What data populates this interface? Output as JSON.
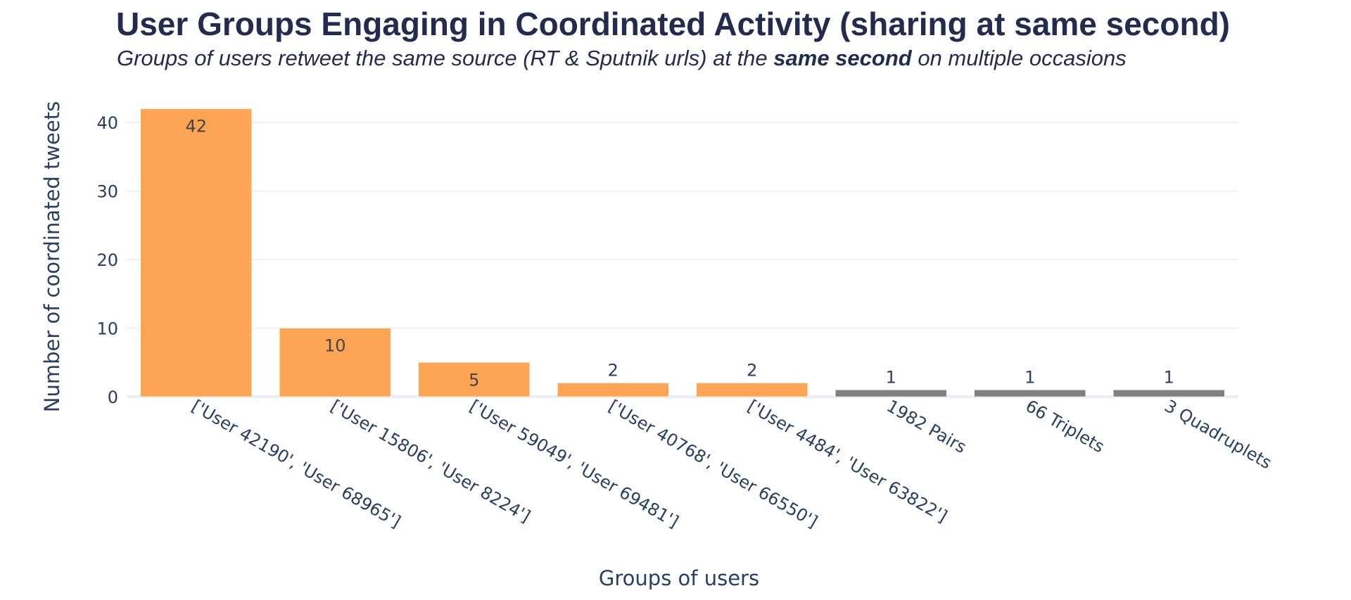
{
  "chart_data": {
    "type": "bar",
    "title": "User Groups Engaging in Coordinated Activity (sharing at same second)",
    "subtitle": {
      "pre": "Groups of users retweet the same source (RT & Sputnik urls) at the ",
      "emphasis": "same second",
      "post": " on multiple occasions"
    },
    "xlabel": "Groups of users",
    "ylabel": "Number of coordinated tweets",
    "ylim": [
      0,
      43.5
    ],
    "yticks": [
      0,
      10,
      20,
      30,
      40
    ],
    "grid": true,
    "legend": "none",
    "categories": [
      "['User 42190', 'User 68965']",
      "['User 15806', 'User 8224']",
      "['User 59049', 'User 69481']",
      "['User 40768', 'User 66550']",
      "['User 4484', 'User 63822']",
      "1982 Pairs",
      "66 Triplets",
      "3 Quadruplets"
    ],
    "values": [
      42,
      10,
      5,
      2,
      2,
      1,
      1,
      1
    ],
    "data_labels": [
      "42",
      "10",
      "5",
      "2",
      "2",
      "1",
      "1",
      "1"
    ],
    "bar_colors": [
      "#ffa555",
      "#ffa555",
      "#ffa555",
      "#ffa555",
      "#ffa555",
      "#808080",
      "#808080",
      "#808080"
    ],
    "tick_rotation_deg": 30
  }
}
